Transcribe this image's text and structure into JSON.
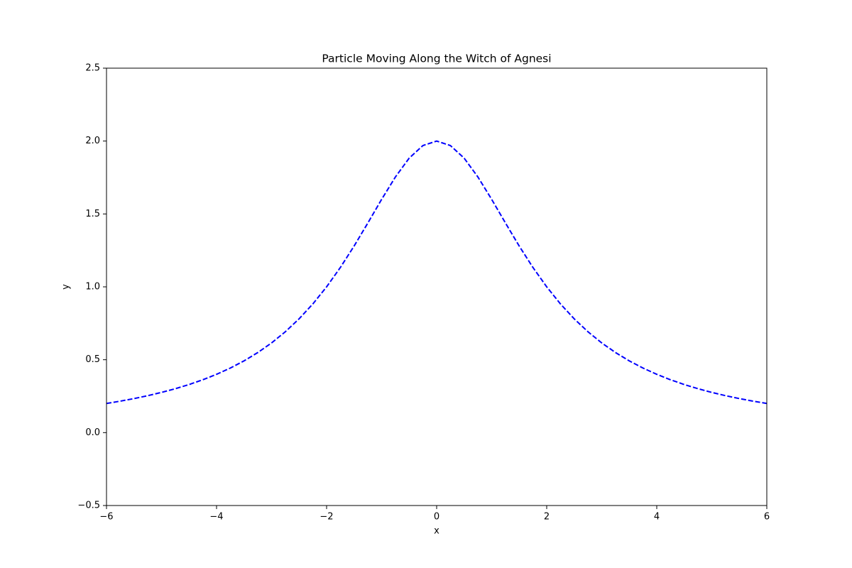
{
  "chart_data": {
    "type": "line",
    "title": "Particle Moving Along the Witch of Agnesi",
    "xlabel": "x",
    "ylabel": "y",
    "x": [
      -6,
      -5.75,
      -5.5,
      -5.25,
      -5,
      -4.75,
      -4.5,
      -4.25,
      -4,
      -3.75,
      -3.5,
      -3.25,
      -3,
      -2.75,
      -2.5,
      -2.25,
      -2,
      -1.75,
      -1.5,
      -1.25,
      -1,
      -0.75,
      -0.5,
      -0.25,
      0,
      0.25,
      0.5,
      0.75,
      1,
      1.25,
      1.5,
      1.75,
      2,
      2.25,
      2.5,
      2.75,
      3,
      3.25,
      3.5,
      3.75,
      4,
      4.25,
      4.5,
      4.75,
      5,
      5.25,
      5.5,
      5.75,
      6
    ],
    "values": [
      0.2,
      0.2159,
      0.2336,
      0.2535,
      0.2759,
      0.3012,
      0.3299,
      0.3626,
      0.4,
      0.4429,
      0.4923,
      0.5494,
      0.6154,
      0.6919,
      0.7805,
      0.8828,
      1,
      1.1327,
      1.28,
      1.4382,
      1.6,
      1.7534,
      1.8824,
      1.9692,
      2,
      1.9692,
      1.8824,
      1.7534,
      1.6,
      1.4382,
      1.28,
      1.1327,
      1,
      0.8828,
      0.7805,
      0.6919,
      0.6154,
      0.5494,
      0.4923,
      0.4429,
      0.4,
      0.3626,
      0.3299,
      0.3012,
      0.2759,
      0.2535,
      0.2336,
      0.2159,
      0.2
    ],
    "color": "#0000ff",
    "linestyle": "dashed",
    "xlim": [
      -6,
      6
    ],
    "xticks": [
      {
        "value": -6,
        "label": "−6"
      },
      {
        "value": -4,
        "label": "−4"
      },
      {
        "value": -2,
        "label": "−2"
      },
      0,
      2,
      4,
      6
    ],
    "ylim": [
      -0.5,
      2.5
    ],
    "yticks": [
      {
        "value": -0.5,
        "label": "−0.5"
      },
      {
        "value": 0,
        "label": "0.0"
      },
      0.5,
      {
        "value": 1,
        "label": "1.0"
      },
      1.5,
      {
        "value": 2,
        "label": "2.0"
      },
      2.5
    ],
    "grid": false
  }
}
